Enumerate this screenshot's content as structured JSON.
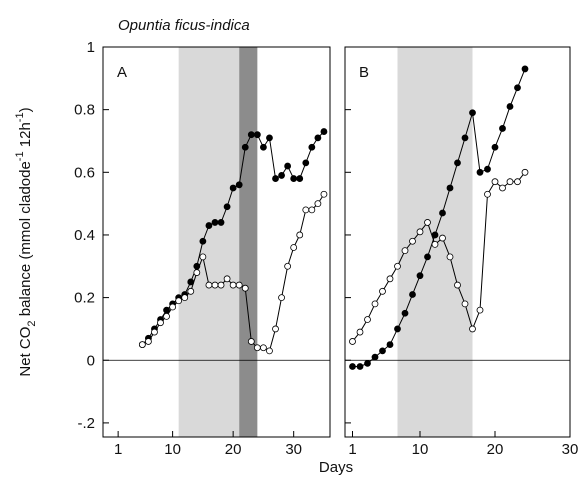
{
  "title": "Opuntia ficus-indica",
  "y_label": [
    "Net CO",
    "2",
    " balance (mmol cladode",
    "-1",
    " 12h",
    "-1",
    ")"
  ],
  "x_label": "Days",
  "chart_data": [
    {
      "type": "line",
      "panel": "A",
      "x": [
        5,
        6,
        7,
        8,
        9,
        10,
        11,
        12,
        13,
        14,
        15,
        16,
        17,
        18,
        19,
        20,
        21,
        22,
        23,
        24,
        25,
        26,
        27,
        28,
        29,
        30,
        31,
        32,
        33,
        34,
        35
      ],
      "series": [
        {
          "color": "#000000",
          "fill": "#000000",
          "values": [
            0.05,
            0.07,
            0.1,
            0.13,
            0.16,
            0.18,
            0.2,
            0.21,
            0.25,
            0.3,
            0.38,
            0.43,
            0.44,
            0.44,
            0.49,
            0.55,
            0.56,
            0.68,
            0.72,
            0.72,
            0.68,
            0.71,
            0.58,
            0.59,
            0.62,
            0.58,
            0.58,
            0.63,
            0.68,
            0.71,
            0.73
          ]
        },
        {
          "color": "#000000",
          "fill": "#ffffff",
          "values": [
            0.05,
            0.06,
            0.09,
            0.12,
            0.14,
            0.17,
            0.19,
            0.2,
            0.22,
            0.28,
            0.33,
            0.24,
            0.24,
            0.24,
            0.26,
            0.24,
            0.24,
            0.23,
            0.06,
            0.04,
            0.04,
            0.03,
            0.1,
            0.2,
            0.3,
            0.36,
            0.4,
            0.48,
            0.48,
            0.5,
            0.53
          ]
        }
      ],
      "shaded_regions": [
        {
          "from": 11,
          "to": 21,
          "color": "#d9d9d9"
        },
        {
          "from": 21,
          "to": 24,
          "color": "#8c8c8c"
        }
      ],
      "xlim": [
        -1.5,
        36
      ],
      "xticks": [
        1,
        10,
        20,
        30
      ],
      "ylim": [
        -0.245,
        1
      ],
      "yticks": [
        1,
        0.8,
        0.6,
        0.4,
        0.2,
        0,
        {
          "value": -0.2,
          "label": "-.2"
        }
      ],
      "show_ytick_labels": true,
      "zero_line": true
    },
    {
      "type": "line",
      "panel": "B",
      "x": [
        1,
        2,
        3,
        4,
        5,
        6,
        7,
        8,
        9,
        10,
        11,
        12,
        13,
        14,
        15,
        16,
        17,
        18,
        19,
        20,
        21,
        22,
        23,
        24
      ],
      "series": [
        {
          "color": "#000000",
          "fill": "#000000",
          "values": [
            -0.02,
            -0.02,
            -0.01,
            0.01,
            0.03,
            0.05,
            0.1,
            0.15,
            0.21,
            0.27,
            0.33,
            0.4,
            0.47,
            0.55,
            0.63,
            0.71,
            0.79,
            0.6,
            0.61,
            0.68,
            0.74,
            0.81,
            0.87,
            0.93
          ]
        },
        {
          "color": "#000000",
          "fill": "#ffffff",
          "values": [
            0.06,
            0.09,
            0.13,
            0.18,
            0.22,
            0.26,
            0.3,
            0.35,
            0.38,
            0.41,
            0.44,
            0.37,
            0.39,
            0.33,
            0.24,
            0.18,
            0.1,
            0.16,
            0.53,
            0.57,
            0.55,
            0.57,
            0.57,
            0.6
          ]
        }
      ],
      "shaded_regions": [
        {
          "from": 7,
          "to": 17,
          "color": "#d9d9d9"
        }
      ],
      "xlim": [
        0,
        30
      ],
      "xticks": [
        1,
        10,
        20,
        30
      ],
      "ylim": [
        -0.245,
        1
      ],
      "yticks": [
        1,
        0.8,
        0.6,
        0.4,
        0.2,
        0,
        -0.2
      ],
      "show_ytick_labels": false,
      "zero_line": true
    }
  ]
}
